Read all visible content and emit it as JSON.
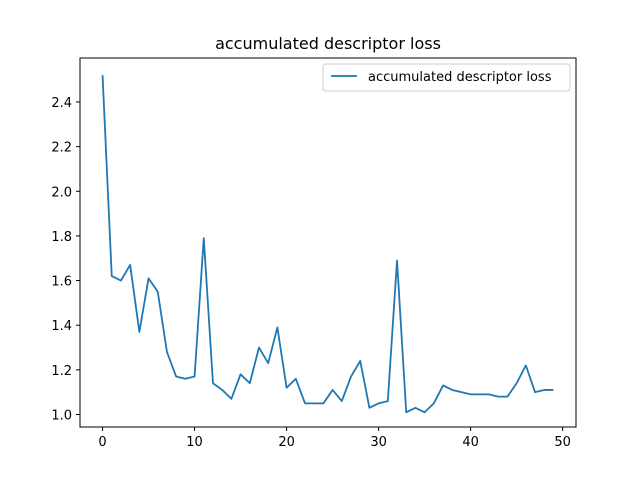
{
  "chart_data": {
    "type": "line",
    "title": "accumulated descriptor loss",
    "xlabel": "",
    "ylabel": "",
    "xlim": [
      -2.45,
      51.45
    ],
    "ylim": [
      0.944,
      2.597
    ],
    "xticks": [
      0,
      10,
      20,
      30,
      40,
      50
    ],
    "yticks": [
      1.0,
      1.2,
      1.4,
      1.6,
      1.8,
      2.0,
      2.2,
      2.4
    ],
    "ytick_labels": [
      "1.0",
      "1.2",
      "1.4",
      "1.6",
      "1.8",
      "2.0",
      "2.2",
      "2.4"
    ],
    "grid": false,
    "legend_position": "top-right",
    "series": [
      {
        "name": "accumulated descriptor loss",
        "color": "#1f77b4",
        "x": [
          0,
          1,
          2,
          3,
          4,
          5,
          6,
          7,
          8,
          9,
          10,
          11,
          12,
          13,
          14,
          15,
          16,
          17,
          18,
          19,
          20,
          21,
          22,
          23,
          24,
          25,
          26,
          27,
          28,
          29,
          30,
          31,
          32,
          33,
          34,
          35,
          36,
          37,
          38,
          39,
          40,
          41,
          42,
          43,
          44,
          45,
          46,
          47,
          48,
          49
        ],
        "y": [
          2.52,
          1.62,
          1.6,
          1.67,
          1.37,
          1.61,
          1.55,
          1.28,
          1.17,
          1.16,
          1.17,
          1.79,
          1.14,
          1.11,
          1.07,
          1.18,
          1.14,
          1.3,
          1.23,
          1.39,
          1.12,
          1.16,
          1.05,
          1.05,
          1.05,
          1.11,
          1.06,
          1.17,
          1.24,
          1.03,
          1.05,
          1.06,
          1.69,
          1.01,
          1.03,
          1.01,
          1.05,
          1.13,
          1.11,
          1.1,
          1.09,
          1.09,
          1.09,
          1.08,
          1.08,
          1.14,
          1.22,
          1.1,
          1.11,
          1.11
        ]
      }
    ]
  }
}
